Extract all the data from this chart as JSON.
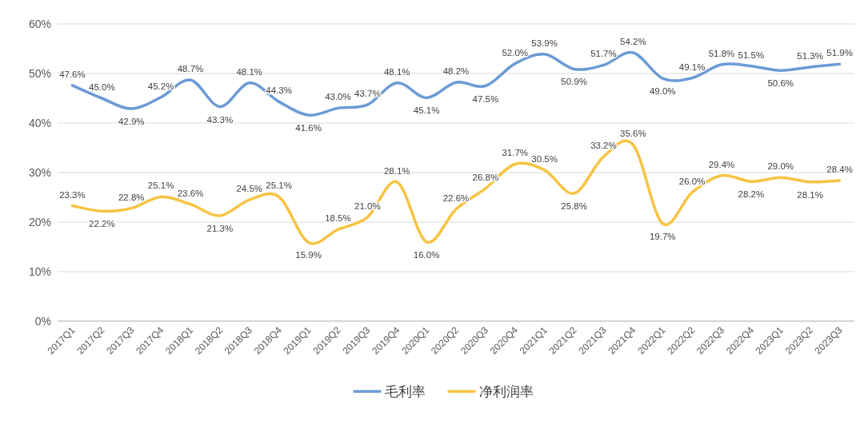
{
  "chart_data": {
    "type": "line",
    "categories": [
      "2017Q1",
      "2017Q2",
      "2017Q3",
      "2017Q4",
      "2018Q1",
      "2018Q2",
      "2018Q3",
      "2018Q4",
      "2019Q1",
      "2019Q2",
      "2019Q3",
      "2019Q4",
      "2020Q1",
      "2020Q2",
      "2020Q3",
      "2020Q4",
      "2021Q1",
      "2021Q2",
      "2021Q3",
      "2021Q4",
      "2022Q1",
      "2022Q2",
      "2022Q3",
      "2022Q4",
      "2023Q1",
      "2023Q2",
      "2023Q3"
    ],
    "series": [
      {
        "name": "毛利率",
        "color": "#6b9bd6",
        "values": [
          47.6,
          45.0,
          42.9,
          45.2,
          48.7,
          43.3,
          48.1,
          44.3,
          41.6,
          43.0,
          43.7,
          48.1,
          45.1,
          48.2,
          47.5,
          52.0,
          53.9,
          50.9,
          51.7,
          54.2,
          49.0,
          49.1,
          51.8,
          51.5,
          50.6,
          51.3,
          51.9
        ],
        "value_labels": [
          "47.6%",
          "45.0%",
          "42.9%",
          "45.2%",
          "48.7%",
          "43.3%",
          "48.1%",
          "44.3%",
          "41.6%",
          "43.0%",
          "43.7%",
          "48.1%",
          "45.1%",
          "48.2%",
          "47.5%",
          "52.0%",
          "53.9%",
          "50.9%",
          "51.7%",
          "54.2%",
          "49.0%",
          "49.1%",
          "51.8%",
          "51.5%",
          "50.6%",
          "51.3%",
          "51.9%"
        ]
      },
      {
        "name": "净利润率",
        "color": "#f7c342",
        "values": [
          23.3,
          22.2,
          22.8,
          25.1,
          23.6,
          21.3,
          24.5,
          25.1,
          15.9,
          18.5,
          21.0,
          28.1,
          16.0,
          22.6,
          26.8,
          31.7,
          30.5,
          25.8,
          33.2,
          35.6,
          19.7,
          26.0,
          29.4,
          28.2,
          29.0,
          28.1,
          28.4
        ],
        "value_labels": [
          "23.3%",
          "22.2%",
          "22.8%",
          "25.1%",
          "23.6%",
          "21.3%",
          "24.5%",
          "25.1%",
          "15.9%",
          "18.5%",
          "21.0%",
          "28.1%",
          "16.0%",
          "22.6%",
          "26.8%",
          "31.7%",
          "30.5%",
          "25.8%",
          "33.2%",
          "35.6%",
          "19.7%",
          "26.0%",
          "29.4%",
          "28.2%",
          "29.0%",
          "28.1%",
          "28.4%"
        ]
      }
    ],
    "ylim": [
      0,
      60
    ],
    "yticks": [
      {
        "value": 0,
        "label": "0%"
      },
      {
        "value": 10,
        "label": "10%"
      },
      {
        "value": 20,
        "label": "20%"
      },
      {
        "value": 30,
        "label": "30%"
      },
      {
        "value": 40,
        "label": "40%"
      },
      {
        "value": 50,
        "label": "50%"
      },
      {
        "value": 60,
        "label": "60%"
      }
    ],
    "grid": "y",
    "legend": "bottom",
    "marker": "none",
    "line_style": "solid"
  }
}
